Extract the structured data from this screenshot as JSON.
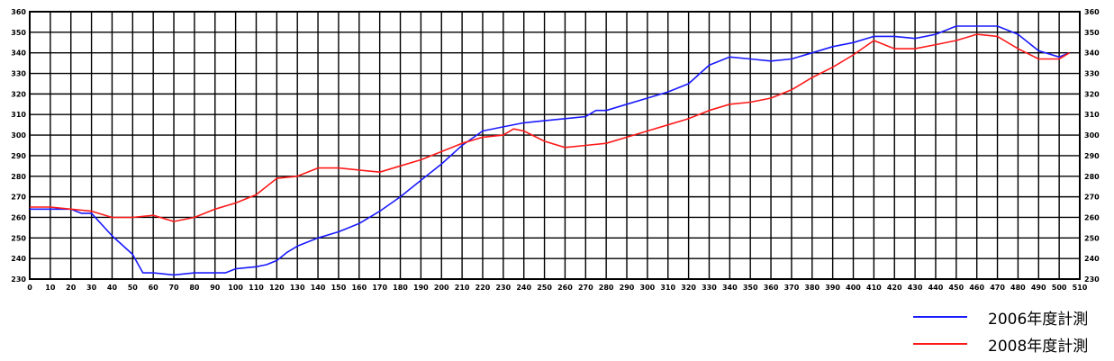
{
  "chart_data": {
    "type": "line",
    "x_ticks": [
      0,
      10,
      20,
      30,
      40,
      50,
      60,
      70,
      80,
      90,
      100,
      110,
      120,
      130,
      140,
      150,
      160,
      170,
      180,
      190,
      200,
      210,
      220,
      230,
      240,
      250,
      260,
      270,
      280,
      290,
      300,
      310,
      320,
      330,
      340,
      350,
      360,
      370,
      380,
      390,
      400,
      410,
      420,
      430,
      440,
      450,
      460,
      470,
      480,
      490,
      500,
      510
    ],
    "y_ticks": [
      230,
      240,
      250,
      260,
      270,
      280,
      290,
      300,
      310,
      320,
      330,
      340,
      350,
      360
    ],
    "xlim": [
      0,
      510
    ],
    "ylim": [
      230,
      360
    ],
    "grid": true,
    "legend_position": "bottom-right",
    "series": [
      {
        "name": "2006年度計測",
        "color": "#1a1aff",
        "x": [
          0,
          10,
          20,
          25,
          30,
          40,
          50,
          55,
          60,
          70,
          80,
          90,
          95,
          100,
          110,
          115,
          120,
          125,
          130,
          140,
          150,
          160,
          170,
          180,
          190,
          200,
          210,
          220,
          230,
          240,
          250,
          260,
          270,
          275,
          280,
          290,
          300,
          310,
          320,
          330,
          340,
          350,
          360,
          370,
          380,
          390,
          400,
          410,
          420,
          430,
          440,
          450,
          460,
          470,
          480,
          490,
          500,
          505
        ],
        "values": [
          264,
          264,
          264,
          262,
          262,
          251,
          242,
          233,
          233,
          232,
          233,
          233,
          233,
          235,
          236,
          237,
          239,
          243,
          246,
          250,
          253,
          257,
          263,
          270,
          278,
          286,
          295,
          302,
          304,
          306,
          307,
          308,
          309,
          312,
          312,
          315,
          318,
          321,
          325,
          334,
          338,
          337,
          336,
          337,
          340,
          343,
          345,
          348,
          348,
          347,
          349,
          353,
          353,
          353,
          349,
          341,
          338,
          340
        ]
      },
      {
        "name": "2008年度計測",
        "color": "#ff1a1a",
        "x": [
          0,
          10,
          20,
          30,
          40,
          50,
          60,
          70,
          80,
          90,
          100,
          110,
          120,
          130,
          140,
          150,
          160,
          170,
          180,
          190,
          200,
          210,
          220,
          230,
          235,
          240,
          250,
          260,
          270,
          280,
          290,
          300,
          310,
          320,
          330,
          340,
          350,
          360,
          370,
          380,
          390,
          400,
          410,
          420,
          430,
          440,
          450,
          460,
          470,
          480,
          490,
          500,
          505
        ],
        "values": [
          265,
          265,
          264,
          263,
          260,
          260,
          261,
          258,
          260,
          264,
          267,
          271,
          279,
          280,
          284,
          284,
          283,
          282,
          285,
          288,
          292,
          296,
          299,
          300,
          303,
          302,
          297,
          294,
          295,
          296,
          299,
          302,
          305,
          308,
          312,
          315,
          316,
          318,
          322,
          328,
          333,
          339,
          346,
          342,
          342,
          344,
          346,
          349,
          348,
          342,
          337,
          337,
          340
        ]
      }
    ]
  }
}
